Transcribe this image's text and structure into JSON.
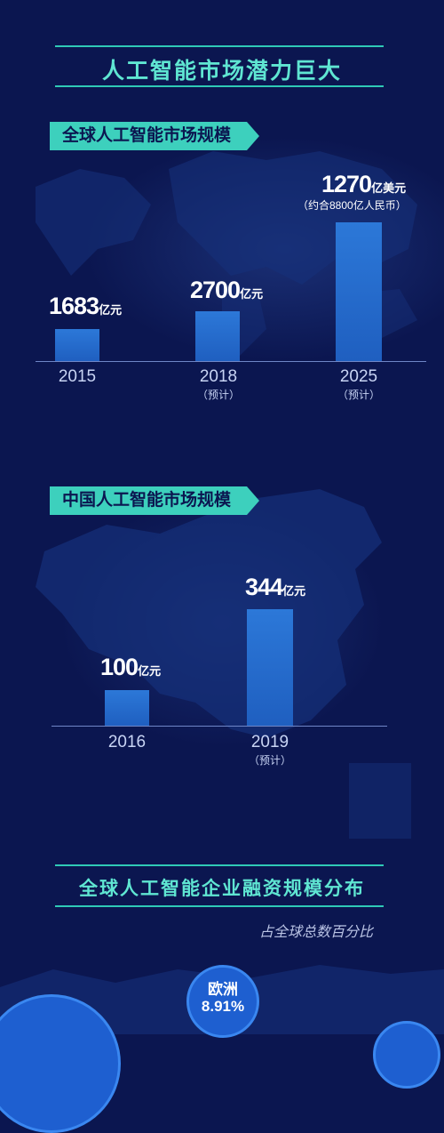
{
  "main_title": "人工智能市场潜力巨大",
  "global_market": {
    "tag": "全球人工智能市场规模",
    "bars": [
      {
        "value_text": "1683",
        "unit": "亿元",
        "sub": "",
        "year": "2015",
        "note": ""
      },
      {
        "value_text": "2700",
        "unit": "亿元",
        "sub": "",
        "year": "2018",
        "note": "（预计）"
      },
      {
        "value_text": "1270",
        "unit": "亿美元",
        "sub": "（约合8800亿人民币）",
        "year": "2025",
        "note": "（预计）"
      }
    ]
  },
  "china_market": {
    "tag": "中国人工智能市场规模",
    "bars": [
      {
        "value_text": "100",
        "unit": "亿元",
        "year": "2016",
        "note": ""
      },
      {
        "value_text": "344",
        "unit": "亿元",
        "year": "2019",
        "note": "（预计）"
      }
    ]
  },
  "financing": {
    "title": "全球人工智能企业融资规模分布",
    "caption": "占全球总数百分比",
    "bubbles": [
      {
        "region": "欧洲",
        "percent": "8.91%"
      }
    ]
  },
  "colors": {
    "background": "#0b1650",
    "accent": "#3dd0bd",
    "bar": "#2c78d8"
  },
  "chart_data": [
    {
      "type": "bar",
      "title": "全球人工智能市场规模",
      "categories": [
        "2015",
        "2018",
        "2025"
      ],
      "values": [
        1683,
        2700,
        8800
      ],
      "value_labels": [
        "1683亿元",
        "2700亿元",
        "1270亿美元（约合8800亿人民币）"
      ],
      "notes": [
        "",
        "（预计）",
        "（预计）"
      ]
    },
    {
      "type": "bar",
      "title": "中国人工智能市场规模",
      "categories": [
        "2016",
        "2019"
      ],
      "values": [
        100,
        344
      ],
      "value_labels": [
        "100亿元",
        "344亿元"
      ],
      "notes": [
        "",
        "（预计）"
      ]
    }
  ]
}
